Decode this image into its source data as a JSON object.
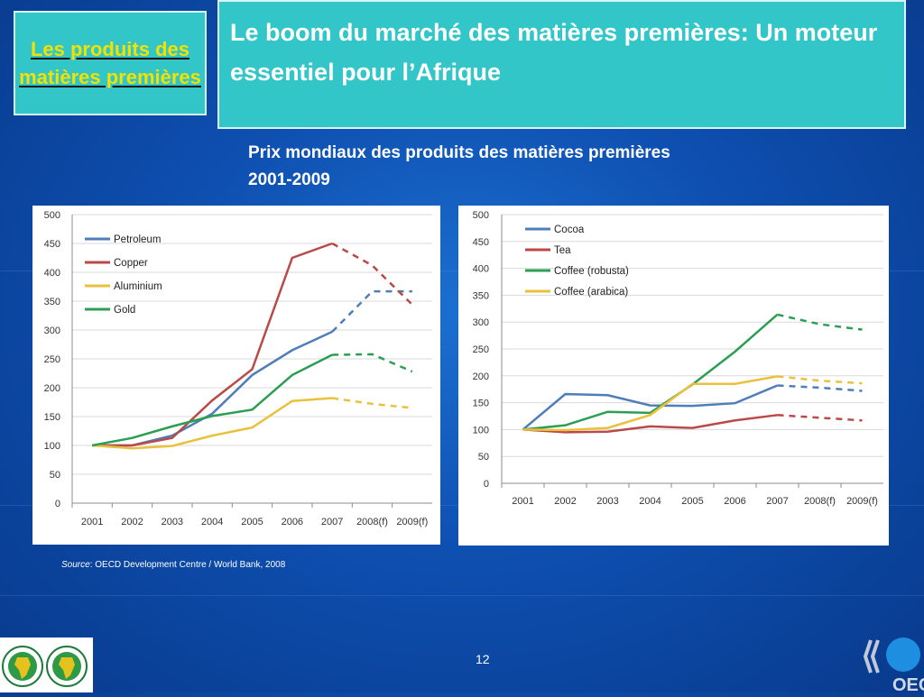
{
  "header": {
    "section": "Les produits des matières premières",
    "title": "Le boom du marché des matières premières: Un moteur essentiel pour l’Afrique"
  },
  "chart_heading": {
    "line1": "Prix mondiaux des produits des matières premières",
    "line2": "2001-2009"
  },
  "source": {
    "label": "Source",
    "text": ": OECD Development Centre / World Bank, 2008"
  },
  "page_number": "12",
  "logos": {
    "oecd_text": "OECD"
  },
  "chart_data": [
    {
      "type": "line",
      "categories": [
        "2001",
        "2002",
        "2003",
        "2004",
        "2005",
        "2006",
        "2007",
        "2008(f)",
        "2009(f)"
      ],
      "forecast_from_index": 6,
      "ylim": [
        0,
        500
      ],
      "yticks": [
        0,
        50,
        100,
        150,
        200,
        250,
        300,
        350,
        400,
        450,
        500
      ],
      "grid": true,
      "legend_position": "top-left",
      "series": [
        {
          "name": "Petroleum",
          "color": "#4f7db9",
          "values": [
            100,
            100,
            117,
            155,
            222,
            265,
            297,
            367,
            367
          ]
        },
        {
          "name": "Copper",
          "color": "#b94a47",
          "values": [
            100,
            100,
            113,
            178,
            232,
            425,
            450,
            412,
            344
          ]
        },
        {
          "name": "Aluminium",
          "color": "#eac13d",
          "values": [
            100,
            95,
            99,
            117,
            131,
            177,
            182,
            172,
            165
          ]
        },
        {
          "name": "Gold",
          "color": "#2b9e52",
          "values": [
            100,
            113,
            133,
            151,
            162,
            222,
            257,
            258,
            228
          ]
        }
      ]
    },
    {
      "type": "line",
      "categories": [
        "2001",
        "2002",
        "2003",
        "2004",
        "2005",
        "2006",
        "2007",
        "2008(f)",
        "2009(f)"
      ],
      "forecast_from_index": 6,
      "ylim": [
        0,
        500
      ],
      "yticks": [
        0,
        50,
        100,
        150,
        200,
        250,
        300,
        350,
        400,
        450,
        500
      ],
      "grid": true,
      "legend_position": "top-left",
      "series": [
        {
          "name": "Cocoa",
          "color": "#4f7db9",
          "values": [
            100,
            166,
            164,
            145,
            144,
            149,
            182,
            178,
            172
          ]
        },
        {
          "name": "Tea",
          "color": "#b94a47",
          "values": [
            100,
            95,
            96,
            106,
            103,
            117,
            127,
            122,
            117
          ]
        },
        {
          "name": "Coffee (robusta)",
          "color": "#2b9e52",
          "values": [
            100,
            108,
            133,
            131,
            184,
            245,
            314,
            296,
            286
          ]
        },
        {
          "name": "Coffee (arabica)",
          "color": "#eac13d",
          "values": [
            100,
            99,
            103,
            127,
            185,
            185,
            199,
            191,
            186
          ]
        }
      ]
    }
  ]
}
